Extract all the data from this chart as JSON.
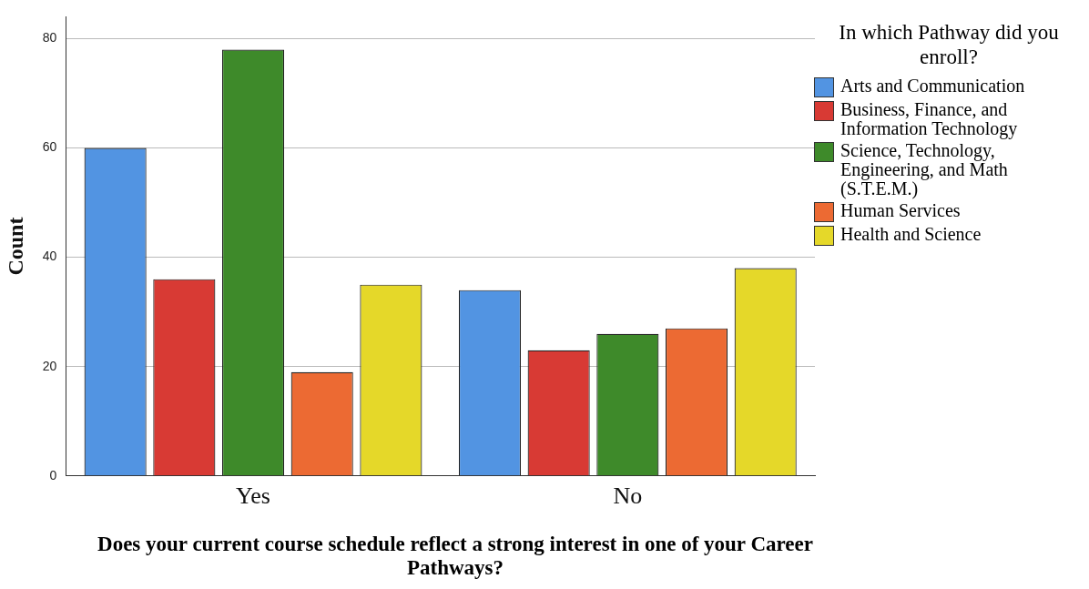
{
  "chart_data": {
    "type": "bar",
    "categories": [
      "Yes",
      "No"
    ],
    "xlabel": "Does your current course schedule reflect a strong interest in one of your Career Pathways?",
    "ylabel": "Count",
    "legend_title": "In which Pathway did you enroll?",
    "series": [
      {
        "name": "Arts and Communication",
        "color": "#5294e2",
        "values": [
          60,
          34
        ]
      },
      {
        "name": "Business, Finance, and Information Technology",
        "color": "#d83a34",
        "values": [
          36,
          23
        ]
      },
      {
        "name": "Science, Technology, Engineering, and Math (S.T.E.M.)",
        "color": "#3e8a2a",
        "values": [
          78,
          26
        ]
      },
      {
        "name": "Human Services",
        "color": "#ec6a33",
        "values": [
          19,
          27
        ]
      },
      {
        "name": "Health and Science",
        "color": "#e5d829",
        "values": [
          35,
          38
        ]
      }
    ],
    "ylim": [
      0,
      84
    ],
    "yticks": [
      0,
      20,
      40,
      60,
      80
    ],
    "grid": "y",
    "legend": "right"
  }
}
